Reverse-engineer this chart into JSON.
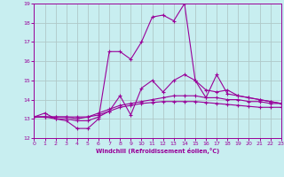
{
  "xlabel": "Windchill (Refroidissement éolien,°C)",
  "xlim": [
    0,
    23
  ],
  "ylim": [
    12,
    19
  ],
  "yticks": [
    12,
    13,
    14,
    15,
    16,
    17,
    18,
    19
  ],
  "xticks": [
    0,
    1,
    2,
    3,
    4,
    5,
    6,
    7,
    8,
    9,
    10,
    11,
    12,
    13,
    14,
    15,
    16,
    17,
    18,
    19,
    20,
    21,
    22,
    23
  ],
  "bg_color": "#c8eef0",
  "line_color": "#990099",
  "grid_color": "#b0c8c8",
  "lines": [
    {
      "x": [
        0,
        1,
        2,
        3,
        4,
        5,
        6,
        7,
        8,
        9,
        10,
        11,
        12,
        13,
        14,
        15,
        16,
        17,
        18,
        19,
        20,
        21,
        22,
        23
      ],
      "y": [
        13.1,
        13.3,
        13.0,
        12.9,
        12.5,
        12.5,
        13.0,
        16.5,
        16.5,
        16.1,
        17.0,
        18.3,
        18.4,
        18.1,
        19.0,
        15.0,
        14.1,
        15.3,
        14.3,
        14.2,
        14.1,
        14.0,
        13.9,
        13.8
      ]
    },
    {
      "x": [
        0,
        1,
        2,
        3,
        4,
        5,
        6,
        7,
        8,
        9,
        10,
        11,
        12,
        13,
        14,
        15,
        16,
        17,
        18,
        19,
        20,
        21,
        22,
        23
      ],
      "y": [
        13.1,
        13.1,
        13.0,
        13.0,
        12.9,
        12.9,
        13.1,
        13.4,
        14.2,
        13.2,
        14.6,
        15.0,
        14.4,
        15.0,
        15.3,
        15.0,
        14.5,
        14.4,
        14.5,
        14.2,
        14.1,
        14.0,
        13.9,
        13.8
      ]
    },
    {
      "x": [
        0,
        1,
        2,
        3,
        4,
        5,
        6,
        7,
        8,
        9,
        10,
        11,
        12,
        13,
        14,
        15,
        16,
        17,
        18,
        19,
        20,
        21,
        22,
        23
      ],
      "y": [
        13.1,
        13.1,
        13.1,
        13.1,
        13.0,
        13.1,
        13.3,
        13.5,
        13.7,
        13.8,
        13.9,
        14.0,
        14.1,
        14.2,
        14.2,
        14.2,
        14.1,
        14.1,
        14.0,
        14.0,
        13.9,
        13.9,
        13.8,
        13.8
      ]
    },
    {
      "x": [
        0,
        1,
        2,
        3,
        4,
        5,
        6,
        7,
        8,
        9,
        10,
        11,
        12,
        13,
        14,
        15,
        16,
        17,
        18,
        19,
        20,
        21,
        22,
        23
      ],
      "y": [
        13.1,
        13.1,
        13.1,
        13.1,
        13.1,
        13.1,
        13.2,
        13.4,
        13.6,
        13.7,
        13.8,
        13.85,
        13.9,
        13.9,
        13.9,
        13.9,
        13.85,
        13.8,
        13.75,
        13.7,
        13.65,
        13.6,
        13.6,
        13.6
      ]
    }
  ]
}
